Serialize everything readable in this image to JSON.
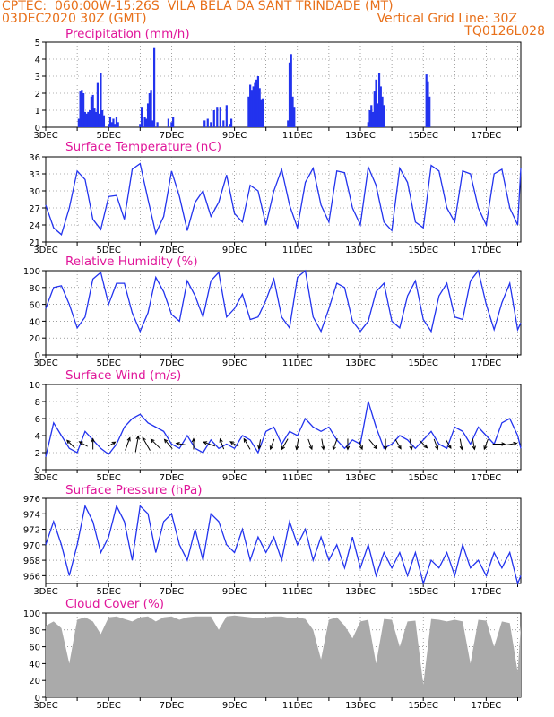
{
  "header": {
    "line1": "CPTEC:  060:00W-15:26S  VILA BELA DA SANT TRINDADE (MT)",
    "line2_left": "03DEC2020 30Z (GMT)",
    "line2_right": "Vertical Grid Line: 30Z",
    "line3_right": "TQ0126L028"
  },
  "colors": {
    "header": "#e8701a",
    "title": "#e0169a",
    "series": "#2233ee",
    "cloud": "#aaaaaa"
  },
  "x_axis": {
    "labels": [
      "3DEC",
      "5DEC",
      "7DEC",
      "9DEC",
      "11DEC",
      "13DEC",
      "15DEC",
      "17DEC"
    ],
    "start_day": 3,
    "end_day": 18.1
  },
  "chart_data": [
    {
      "id": "precip",
      "type": "bar",
      "title": "Precipitation (mm/h)",
      "ylim": [
        0,
        5
      ],
      "yticks": [
        0,
        1,
        2,
        3,
        4,
        5
      ],
      "x_unit": "day of December 2020 (fractional)",
      "x": [
        4.05,
        4.1,
        4.15,
        4.2,
        4.25,
        4.3,
        4.35,
        4.4,
        4.45,
        4.5,
        4.55,
        4.6,
        4.65,
        4.7,
        4.75,
        4.8,
        4.85,
        5.0,
        5.05,
        5.1,
        5.15,
        5.2,
        5.25,
        5.3,
        6.0,
        6.05,
        6.15,
        6.2,
        6.25,
        6.3,
        6.35,
        6.4,
        6.45,
        6.55,
        6.9,
        7.0,
        7.05,
        8.05,
        8.15,
        8.25,
        8.35,
        8.45,
        8.55,
        8.65,
        8.75,
        8.85,
        8.9,
        9.45,
        9.5,
        9.55,
        9.6,
        9.65,
        9.7,
        9.75,
        9.8,
        9.85,
        9.9,
        10.7,
        10.75,
        10.8,
        10.85,
        10.9,
        13.25,
        13.3,
        13.35,
        13.4,
        13.45,
        13.5,
        13.55,
        13.6,
        13.65,
        13.7,
        13.75,
        15.1,
        15.15,
        15.2
      ],
      "values": [
        0.5,
        2.1,
        2.2,
        2.0,
        0.9,
        0.8,
        0.9,
        1.0,
        1.8,
        1.9,
        1.1,
        0.9,
        2.6,
        0.8,
        3.2,
        1.0,
        0.7,
        0.2,
        0.6,
        0.3,
        0.5,
        0.2,
        0.6,
        0.3,
        0.2,
        1.2,
        0.6,
        0.5,
        1.4,
        2.0,
        2.2,
        0.4,
        4.7,
        0.3,
        0.5,
        0.3,
        0.6,
        0.4,
        0.5,
        0.3,
        1.0,
        1.2,
        1.2,
        0.4,
        1.3,
        0.2,
        0.5,
        1.8,
        2.5,
        2.2,
        2.4,
        2.6,
        2.8,
        3.0,
        2.3,
        1.6,
        1.7,
        0.4,
        3.8,
        4.3,
        1.8,
        1.2,
        0.3,
        1.0,
        1.3,
        0.9,
        2.1,
        2.8,
        1.4,
        3.2,
        2.4,
        1.8,
        1.3,
        3.1,
        2.7,
        1.8
      ]
    },
    {
      "id": "temp",
      "type": "line",
      "title": "Surface Temperature (nC)",
      "ylim": [
        21,
        36
      ],
      "yticks": [
        21,
        24,
        27,
        30,
        33,
        36
      ],
      "series": [
        {
          "x": [
            3.0,
            3.25,
            3.5,
            3.75,
            4.0,
            4.25,
            4.5,
            4.75,
            5.0,
            5.25,
            5.5,
            5.75,
            6.0,
            6.25,
            6.5,
            6.75,
            7.0,
            7.25,
            7.5,
            7.75,
            8.0,
            8.25,
            8.5,
            8.75,
            9.0,
            9.25,
            9.5,
            9.75,
            10.0,
            10.25,
            10.5,
            10.75,
            11.0,
            11.25,
            11.5,
            11.75,
            12.0,
            12.25,
            12.5,
            12.75,
            13.0,
            13.25,
            13.5,
            13.75,
            14.0,
            14.25,
            14.5,
            14.75,
            15.0,
            15.25,
            15.5,
            15.75,
            16.0,
            16.25,
            16.5,
            16.75,
            17.0,
            17.25,
            17.5,
            17.75,
            18.0,
            18.1
          ],
          "values": [
            27.5,
            23.5,
            22.3,
            27.0,
            33.5,
            32.0,
            25.0,
            23.2,
            29.0,
            29.2,
            25.0,
            33.8,
            34.8,
            28.5,
            22.5,
            25.5,
            33.5,
            29.0,
            23.0,
            28.0,
            30.0,
            25.5,
            28.0,
            32.8,
            26.0,
            24.5,
            31.0,
            30.0,
            24.0,
            30.0,
            33.8,
            27.5,
            23.5,
            31.5,
            34.0,
            27.5,
            24.5,
            33.5,
            33.2,
            27.0,
            24.0,
            34.2,
            31.0,
            24.5,
            23.0,
            34.0,
            31.5,
            24.5,
            23.5,
            34.5,
            33.5,
            27.0,
            24.5,
            33.5,
            33.0,
            27.0,
            24.0,
            33.0,
            33.8,
            27.0,
            24.0,
            34.0
          ]
        }
      ]
    },
    {
      "id": "rh",
      "type": "line",
      "title": "Relative Humidity (%)",
      "ylim": [
        0,
        100
      ],
      "yticks": [
        0,
        20,
        40,
        60,
        80,
        100
      ],
      "series": [
        {
          "x": [
            3.0,
            3.25,
            3.5,
            3.75,
            4.0,
            4.25,
            4.5,
            4.75,
            5.0,
            5.25,
            5.5,
            5.75,
            6.0,
            6.25,
            6.5,
            6.75,
            7.0,
            7.25,
            7.5,
            7.75,
            8.0,
            8.25,
            8.5,
            8.75,
            9.0,
            9.25,
            9.5,
            9.75,
            10.0,
            10.25,
            10.5,
            10.75,
            11.0,
            11.25,
            11.5,
            11.75,
            12.0,
            12.25,
            12.5,
            12.75,
            13.0,
            13.25,
            13.5,
            13.75,
            14.0,
            14.25,
            14.5,
            14.75,
            15.0,
            15.25,
            15.5,
            15.75,
            16.0,
            16.25,
            16.5,
            16.75,
            17.0,
            17.25,
            17.5,
            17.75,
            18.0,
            18.1
          ],
          "values": [
            55,
            80,
            82,
            60,
            32,
            45,
            90,
            98,
            60,
            85,
            85,
            50,
            28,
            50,
            92,
            75,
            48,
            40,
            88,
            70,
            45,
            88,
            98,
            45,
            55,
            72,
            42,
            45,
            65,
            90,
            45,
            32,
            92,
            100,
            45,
            28,
            55,
            85,
            80,
            40,
            28,
            40,
            75,
            85,
            40,
            32,
            70,
            88,
            42,
            28,
            70,
            85,
            45,
            42,
            88,
            100,
            60,
            30,
            62,
            85,
            30,
            38
          ]
        }
      ]
    },
    {
      "id": "wind",
      "type": "line",
      "title": "Surface Wind (m/s)",
      "ylim": [
        0,
        10
      ],
      "yticks": [
        0,
        2,
        4,
        6,
        8,
        10
      ],
      "series": [
        {
          "x": [
            3.0,
            3.25,
            3.5,
            3.75,
            4.0,
            4.25,
            4.5,
            4.75,
            5.0,
            5.25,
            5.5,
            5.75,
            6.0,
            6.25,
            6.5,
            6.75,
            7.0,
            7.25,
            7.5,
            7.75,
            8.0,
            8.25,
            8.5,
            8.75,
            9.0,
            9.25,
            9.5,
            9.75,
            10.0,
            10.25,
            10.5,
            10.75,
            11.0,
            11.25,
            11.5,
            11.75,
            12.0,
            12.25,
            12.5,
            12.75,
            13.0,
            13.25,
            13.5,
            13.75,
            14.0,
            14.25,
            14.5,
            14.75,
            15.0,
            15.25,
            15.5,
            15.75,
            16.0,
            16.25,
            16.5,
            16.75,
            17.0,
            17.25,
            17.5,
            17.75,
            18.0,
            18.1
          ],
          "values": [
            1.5,
            5.5,
            4.0,
            2.5,
            2.0,
            4.5,
            3.5,
            2.5,
            1.8,
            3.0,
            5.0,
            6.0,
            6.5,
            5.5,
            5.0,
            4.5,
            3.0,
            2.5,
            4.0,
            2.5,
            2.0,
            3.5,
            2.5,
            3.0,
            2.5,
            4.0,
            3.5,
            2.0,
            4.5,
            5.0,
            3.0,
            4.5,
            4.0,
            6.0,
            5.0,
            4.5,
            5.0,
            3.5,
            2.5,
            3.5,
            3.0,
            8.0,
            5.0,
            2.5,
            3.0,
            4.0,
            3.5,
            2.5,
            3.5,
            4.5,
            3.0,
            2.5,
            5.0,
            4.5,
            3.0,
            5.0,
            4.0,
            3.0,
            5.5,
            6.0,
            4.0,
            2.5
          ]
        }
      ],
      "wind_barbs": {
        "x": [
          3.8,
          4.2,
          4.5,
          5.1,
          5.6,
          5.9,
          6.2,
          6.5,
          6.9,
          7.3,
          7.7,
          8.2,
          8.6,
          9.0,
          9.4,
          9.8,
          10.2,
          10.6,
          11.0,
          11.4,
          11.8,
          12.2,
          12.6,
          13.0,
          13.4,
          13.8,
          14.2,
          14.6,
          15.0,
          15.4,
          15.8,
          16.2,
          16.6,
          17.0,
          17.4,
          17.8
        ],
        "speed": [
          2.0,
          1.5,
          2.0,
          1.0,
          3.0,
          4.0,
          3.5,
          3.0,
          2.5,
          1.5,
          2.0,
          2.5,
          2.0,
          1.5,
          2.5,
          1.5,
          2.0,
          2.5,
          2.0,
          2.0,
          2.0,
          2.5,
          2.0,
          2.0,
          2.5,
          2.0,
          2.0,
          2.0,
          2.0,
          2.0,
          1.5,
          2.0,
          2.0,
          2.0,
          2.5,
          2.0
        ],
        "dir_deg": [
          315,
          300,
          0,
          60,
          20,
          10,
          330,
          315,
          320,
          280,
          0,
          290,
          340,
          300,
          330,
          190,
          200,
          210,
          190,
          160,
          170,
          200,
          180,
          160,
          140,
          180,
          150,
          170,
          135,
          160,
          150,
          170,
          170,
          200,
          90,
          80
        ]
      }
    },
    {
      "id": "pres",
      "type": "line",
      "title": "Surface Pressure (hPa)",
      "ylim": [
        965,
        976
      ],
      "yticks": [
        966,
        968,
        970,
        972,
        974,
        976
      ],
      "series": [
        {
          "x": [
            3.0,
            3.25,
            3.5,
            3.75,
            4.0,
            4.25,
            4.5,
            4.75,
            5.0,
            5.25,
            5.5,
            5.75,
            6.0,
            6.25,
            6.5,
            6.75,
            7.0,
            7.25,
            7.5,
            7.75,
            8.0,
            8.25,
            8.5,
            8.75,
            9.0,
            9.25,
            9.5,
            9.75,
            10.0,
            10.25,
            10.5,
            10.75,
            11.0,
            11.25,
            11.5,
            11.75,
            12.0,
            12.25,
            12.5,
            12.75,
            13.0,
            13.25,
            13.5,
            13.75,
            14.0,
            14.25,
            14.5,
            14.75,
            15.0,
            15.25,
            15.5,
            15.75,
            16.0,
            16.25,
            16.5,
            16.75,
            17.0,
            17.25,
            17.5,
            17.75,
            18.0,
            18.1
          ],
          "values": [
            970,
            973,
            970,
            966,
            970,
            975,
            973,
            969,
            971,
            975,
            973,
            968,
            975,
            974,
            969,
            973,
            974,
            970,
            968,
            972,
            968,
            974,
            973,
            970,
            969,
            972,
            968,
            971,
            969,
            971,
            968,
            973,
            970,
            972,
            968,
            971,
            968,
            970,
            967,
            971,
            967,
            970,
            966,
            969,
            967,
            969,
            966,
            969,
            965,
            968,
            967,
            969,
            966,
            970,
            967,
            968,
            966,
            969,
            967,
            969,
            965,
            966
          ]
        }
      ]
    },
    {
      "id": "cloud",
      "type": "area",
      "title": "Cloud Cover (%)",
      "ylim": [
        0,
        100
      ],
      "yticks": [
        0,
        20,
        40,
        60,
        80,
        100
      ],
      "series": [
        {
          "x": [
            3.0,
            3.25,
            3.5,
            3.75,
            4.0,
            4.25,
            4.5,
            4.75,
            5.0,
            5.25,
            5.5,
            5.75,
            6.0,
            6.25,
            6.5,
            6.75,
            7.0,
            7.25,
            7.5,
            7.75,
            8.0,
            8.25,
            8.5,
            8.75,
            9.0,
            9.25,
            9.5,
            9.75,
            10.0,
            10.25,
            10.5,
            10.75,
            11.0,
            11.25,
            11.5,
            11.75,
            12.0,
            12.25,
            12.5,
            12.75,
            13.0,
            13.25,
            13.5,
            13.75,
            14.0,
            14.25,
            14.5,
            14.75,
            15.0,
            15.25,
            15.5,
            15.75,
            16.0,
            16.25,
            16.5,
            16.75,
            17.0,
            17.25,
            17.5,
            17.75,
            18.0,
            18.1
          ],
          "values": [
            85,
            90,
            82,
            40,
            92,
            95,
            90,
            75,
            95,
            96,
            93,
            90,
            95,
            96,
            90,
            95,
            96,
            92,
            95,
            96,
            96,
            96,
            80,
            96,
            97,
            96,
            95,
            94,
            95,
            96,
            96,
            94,
            95,
            93,
            80,
            45,
            92,
            95,
            85,
            70,
            90,
            92,
            40,
            93,
            92,
            60,
            90,
            91,
            15,
            93,
            92,
            90,
            92,
            90,
            40,
            92,
            91,
            60,
            90,
            88,
            30,
            85
          ]
        }
      ]
    }
  ]
}
